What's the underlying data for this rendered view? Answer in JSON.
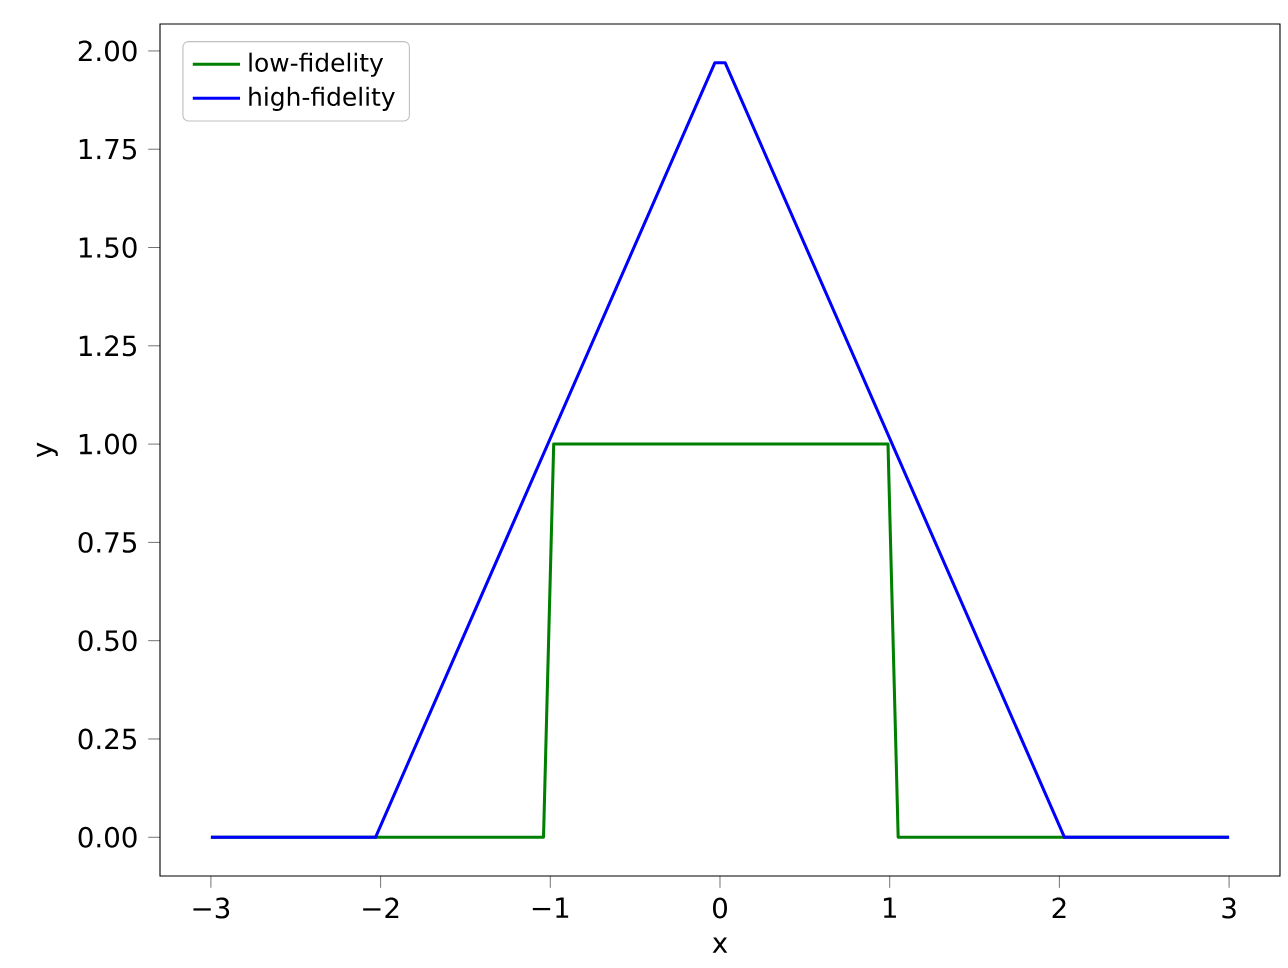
{
  "chart_data": {
    "type": "line",
    "xlabel": "x",
    "ylabel": "y",
    "xlim": [
      -3.3,
      3.3
    ],
    "ylim": [
      -0.0985,
      2.0685
    ],
    "xticks": [
      {
        "value": -3,
        "label": "−3"
      },
      {
        "value": -2,
        "label": "−2"
      },
      {
        "value": -1,
        "label": "−1"
      },
      0,
      1,
      2,
      3
    ],
    "yticks": [
      {
        "value": 0,
        "label": "0.00"
      },
      0.25,
      {
        "value": 0.5,
        "label": "0.50"
      },
      0.75,
      {
        "value": 1,
        "label": "1.00"
      },
      1.25,
      {
        "value": 1.5,
        "label": "1.50"
      },
      1.75,
      {
        "value": 2,
        "label": "2.00"
      }
    ],
    "legend": "top left",
    "grid": false,
    "marker": "none",
    "line_style": "solid",
    "series": [
      {
        "name": "low-fidelity",
        "color": "#008000",
        "x": [
          -3,
          -1.04,
          -0.98,
          0.99,
          1.05,
          3
        ],
        "values": [
          0,
          0,
          1,
          1,
          0,
          0
        ]
      },
      {
        "name": "high-fidelity",
        "color": "#0000ff",
        "x": [
          -3,
          -2.03,
          -0.03,
          0.03,
          2.03,
          3
        ],
        "values": [
          0,
          0,
          1.97,
          1.97,
          0,
          0
        ]
      }
    ]
  }
}
